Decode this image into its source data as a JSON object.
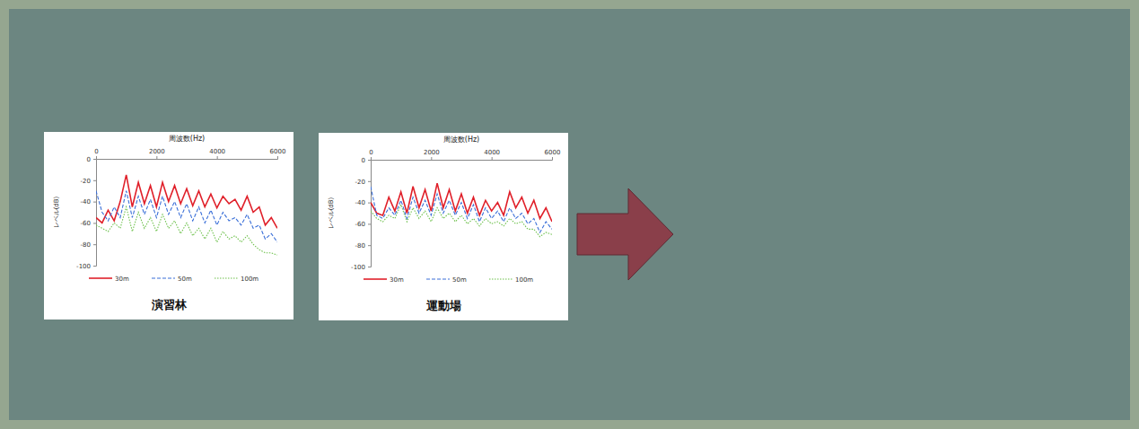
{
  "chart_data": [
    {
      "type": "line",
      "xlabel": "周波数(Hz)",
      "ylabel": "レベル(dB)",
      "annotations": [
        {
          "text": "演習林"
        }
      ],
      "x": [
        0,
        200,
        400,
        600,
        800,
        1000,
        1200,
        1400,
        1600,
        1800,
        2000,
        2200,
        2400,
        2600,
        2800,
        3000,
        3200,
        3400,
        3600,
        3800,
        4000,
        4200,
        4400,
        4600,
        4800,
        5000,
        5200,
        5400,
        5600,
        5800,
        6000
      ],
      "series": [
        {
          "name": "30m",
          "color": "#e0202a",
          "line_style": "solid",
          "values": [
            -55,
            -60,
            -48,
            -58,
            -40,
            -15,
            -45,
            -22,
            -42,
            -25,
            -45,
            -22,
            -40,
            -25,
            -42,
            -28,
            -44,
            -30,
            -45,
            -33,
            -46,
            -35,
            -42,
            -38,
            -48,
            -35,
            -50,
            -45,
            -62,
            -55,
            -65
          ]
        },
        {
          "name": "50m",
          "color": "#3a6fd8",
          "line_style": "dashed",
          "values": [
            -30,
            -50,
            -58,
            -45,
            -55,
            -30,
            -55,
            -35,
            -52,
            -38,
            -55,
            -35,
            -52,
            -40,
            -55,
            -42,
            -58,
            -45,
            -60,
            -48,
            -62,
            -50,
            -58,
            -55,
            -62,
            -52,
            -65,
            -62,
            -75,
            -70,
            -78
          ]
        },
        {
          "name": "100m",
          "color": "#6cc04a",
          "line_style": "dotted",
          "values": [
            -62,
            -65,
            -68,
            -60,
            -65,
            -45,
            -68,
            -50,
            -65,
            -55,
            -68,
            -52,
            -65,
            -58,
            -70,
            -60,
            -72,
            -65,
            -75,
            -65,
            -78,
            -68,
            -75,
            -72,
            -78,
            -72,
            -80,
            -85,
            -88,
            -88,
            -90
          ]
        }
      ],
      "xlim": [
        0,
        6000
      ],
      "xticks": [
        0,
        2000,
        4000,
        6000
      ],
      "ylim": [
        -100,
        0
      ],
      "yticks": [
        0,
        -20,
        -40,
        -60,
        -80,
        -100
      ],
      "grid": false,
      "legend": "bottom"
    },
    {
      "type": "line",
      "xlabel": "周波数(Hz)",
      "ylabel": "レベル(dB)",
      "annotations": [
        {
          "text": "運動場"
        }
      ],
      "x": [
        0,
        200,
        400,
        600,
        800,
        1000,
        1200,
        1400,
        1600,
        1800,
        2000,
        2200,
        2400,
        2600,
        2800,
        3000,
        3200,
        3400,
        3600,
        3800,
        4000,
        4200,
        4400,
        4600,
        4800,
        5000,
        5200,
        5400,
        5600,
        5800,
        6000
      ],
      "series": [
        {
          "name": "30m",
          "color": "#e0202a",
          "line_style": "solid",
          "values": [
            -40,
            -50,
            -52,
            -35,
            -48,
            -30,
            -50,
            -25,
            -45,
            -28,
            -48,
            -22,
            -45,
            -28,
            -48,
            -32,
            -50,
            -35,
            -52,
            -38,
            -48,
            -40,
            -52,
            -30,
            -45,
            -35,
            -50,
            -38,
            -55,
            -45,
            -58
          ]
        },
        {
          "name": "50m",
          "color": "#3a6fd8",
          "line_style": "dashed",
          "values": [
            -25,
            -52,
            -55,
            -45,
            -52,
            -38,
            -55,
            -35,
            -50,
            -38,
            -52,
            -32,
            -50,
            -38,
            -52,
            -40,
            -55,
            -42,
            -58,
            -45,
            -55,
            -48,
            -58,
            -45,
            -55,
            -50,
            -60,
            -55,
            -68,
            -58,
            -65
          ]
        },
        {
          "name": "100m",
          "color": "#6cc04a",
          "line_style": "dotted",
          "values": [
            -48,
            -55,
            -58,
            -52,
            -55,
            -42,
            -58,
            -45,
            -55,
            -48,
            -58,
            -45,
            -55,
            -50,
            -58,
            -52,
            -60,
            -55,
            -62,
            -55,
            -60,
            -58,
            -62,
            -55,
            -60,
            -58,
            -65,
            -65,
            -72,
            -68,
            -70
          ]
        }
      ],
      "xlim": [
        0,
        6000
      ],
      "xticks": [
        0,
        2000,
        4000,
        6000
      ],
      "ylim": [
        -100,
        0
      ],
      "yticks": [
        0,
        -20,
        -40,
        -60,
        -80,
        -100
      ],
      "grid": false,
      "legend": "bottom"
    }
  ]
}
